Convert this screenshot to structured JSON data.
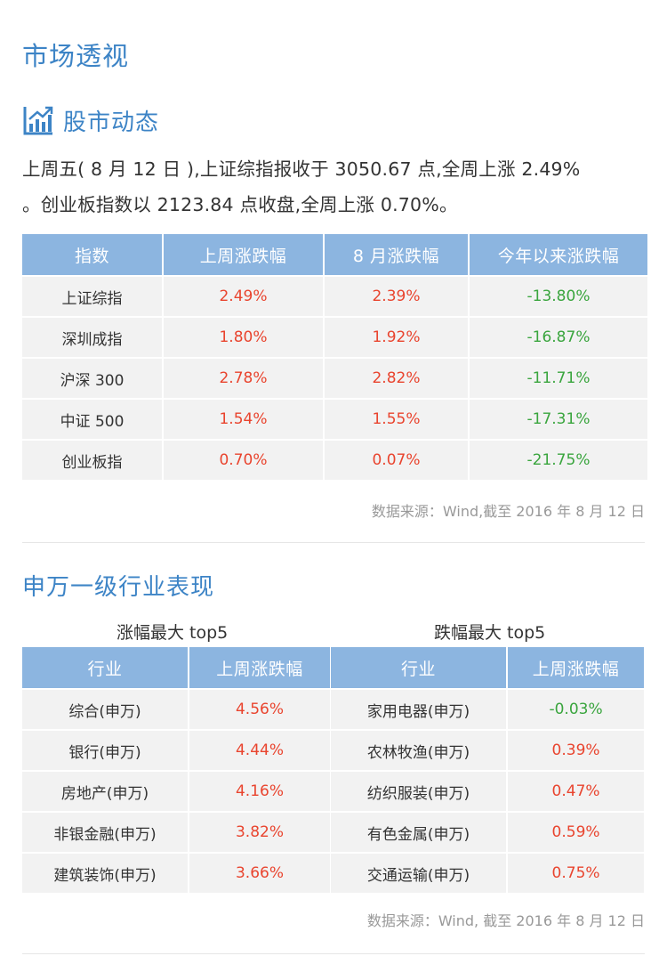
{
  "page_title": "市场透视",
  "section_title": "股市动态",
  "intro_line1": "上周五( 8 月 12 日 ),上证综指报收于 3050.67 点,全周上涨 2.49%",
  "intro_line2": "。创业板指数以 2123.84 点收盘,全周上涨 0.70%。",
  "index_table": {
    "headers": [
      "指数",
      "上周涨跌幅",
      "8 月涨跌幅",
      "今年以来涨跌幅"
    ],
    "rows": [
      {
        "name": "上证综指",
        "week": "2.49%",
        "month": "2.39%",
        "ytd": "-13.80%"
      },
      {
        "name": "深圳成指",
        "week": "1.80%",
        "month": "1.92%",
        "ytd": "-16.87%"
      },
      {
        "name": "沪深 300",
        "week": "2.78%",
        "month": "2.82%",
        "ytd": "-11.71%"
      },
      {
        "name": "中证 500",
        "week": "1.54%",
        "month": "1.55%",
        "ytd": "-17.31%"
      },
      {
        "name": "创业板指",
        "week": "0.70%",
        "month": "0.07%",
        "ytd": "-21.75%"
      }
    ]
  },
  "source_1": "数据来源：Wind,截至 2016 年 8 月 12 日",
  "industry_title": "申万一级行业表现",
  "top_gainers": {
    "caption": "涨幅最大 top5",
    "headers": [
      "行业",
      "上周涨跌幅"
    ],
    "rows": [
      {
        "name": "综合(申万)",
        "value": "4.56%"
      },
      {
        "name": "银行(申万)",
        "value": "4.44%"
      },
      {
        "name": "房地产(申万)",
        "value": "4.16%"
      },
      {
        "name": "非银金融(申万)",
        "value": "3.82%"
      },
      {
        "name": "建筑装饰(申万)",
        "value": "3.66%"
      }
    ]
  },
  "top_losers": {
    "caption": "跌幅最大 top5",
    "headers": [
      "行业",
      "上周涨跌幅"
    ],
    "rows": [
      {
        "name": "家用电器(申万)",
        "value": "-0.03%"
      },
      {
        "name": "农林牧渔(申万)",
        "value": "0.39%"
      },
      {
        "name": "纺织服装(申万)",
        "value": "0.47%"
      },
      {
        "name": "有色金属(申万)",
        "value": "0.59%"
      },
      {
        "name": "交通运输(申万)",
        "value": "0.75%"
      }
    ]
  },
  "source_2": "数据来源：Wind, 截至 2016 年 8 月 12 日",
  "colors": {
    "accent": "#3d84c6",
    "header_bg": "#8cb5e0",
    "up": "#e9442e",
    "down": "#3aa53e"
  },
  "icon": "bar-chart-rising-icon"
}
